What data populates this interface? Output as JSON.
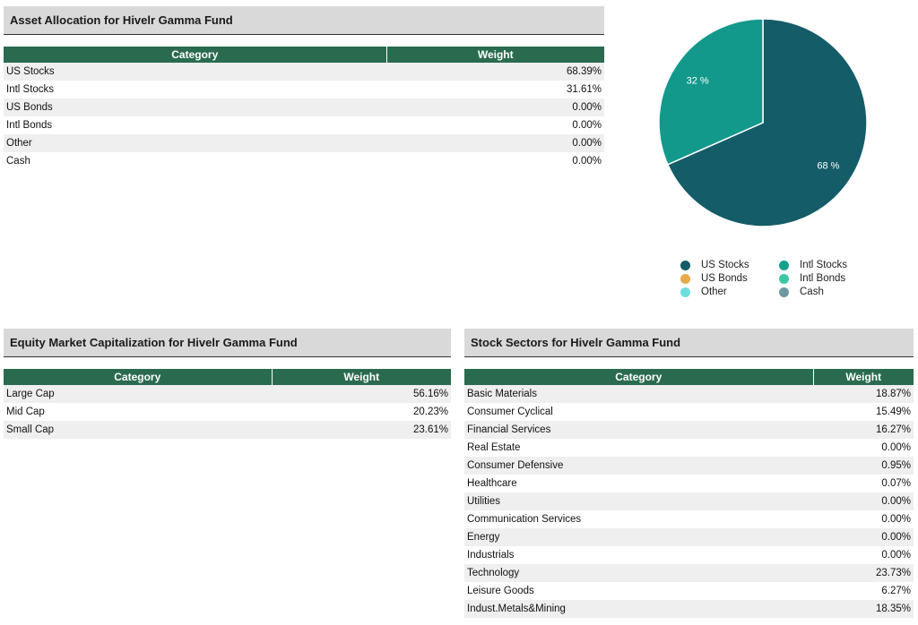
{
  "asset_allocation": {
    "title": "Asset Allocation for Hivelr Gamma Fund",
    "columns": [
      "Category",
      "Weight"
    ],
    "rows": [
      {
        "category": "US Stocks",
        "weight": "68.39%"
      },
      {
        "category": "Intl Stocks",
        "weight": "31.61%"
      },
      {
        "category": "US Bonds",
        "weight": "0.00%"
      },
      {
        "category": "Intl Bonds",
        "weight": "0.00%"
      },
      {
        "category": "Other",
        "weight": "0.00%"
      },
      {
        "category": "Cash",
        "weight": "0.00%"
      }
    ]
  },
  "chart_data": {
    "type": "pie",
    "slices": [
      {
        "label": "US Stocks",
        "value": 68.39,
        "display": "68 %",
        "color": "#135c68"
      },
      {
        "label": "Intl Stocks",
        "value": 31.61,
        "display": "32 %",
        "color": "#13998c"
      }
    ],
    "legend": [
      {
        "label": "US Stocks",
        "color": "#135c68"
      },
      {
        "label": "Intl Stocks",
        "color": "#15a08f"
      },
      {
        "label": "US Bonds",
        "color": "#e8a94a"
      },
      {
        "label": "Intl Bonds",
        "color": "#3cc7a4"
      },
      {
        "label": "Other",
        "color": "#6fdde0"
      },
      {
        "label": "Cash",
        "color": "#6e99a0"
      }
    ],
    "legend_position": "bottom"
  },
  "equity_cap": {
    "title": "Equity Market Capitalization for Hivelr Gamma Fund",
    "columns": [
      "Category",
      "Weight"
    ],
    "rows": [
      {
        "category": "Large Cap",
        "weight": "56.16%"
      },
      {
        "category": "Mid Cap",
        "weight": "20.23%"
      },
      {
        "category": "Small Cap",
        "weight": "23.61%"
      }
    ]
  },
  "stock_sectors": {
    "title": "Stock Sectors for Hivelr Gamma Fund",
    "columns": [
      "Category",
      "Weight"
    ],
    "rows": [
      {
        "category": "Basic Materials",
        "weight": "18.87%"
      },
      {
        "category": "Consumer Cyclical",
        "weight": "15.49%"
      },
      {
        "category": "Financial Services",
        "weight": "16.27%"
      },
      {
        "category": "Real Estate",
        "weight": "0.00%"
      },
      {
        "category": "Consumer Defensive",
        "weight": "0.95%"
      },
      {
        "category": "Healthcare",
        "weight": "0.07%"
      },
      {
        "category": "Utilities",
        "weight": "0.00%"
      },
      {
        "category": "Communication Services",
        "weight": "0.00%"
      },
      {
        "category": "Energy",
        "weight": "0.00%"
      },
      {
        "category": "Industrials",
        "weight": "0.00%"
      },
      {
        "category": "Technology",
        "weight": "23.73%"
      },
      {
        "category": "Leisure Goods",
        "weight": "6.27%"
      },
      {
        "category": "Indust.Metals&Mining",
        "weight": "18.35%"
      }
    ]
  }
}
